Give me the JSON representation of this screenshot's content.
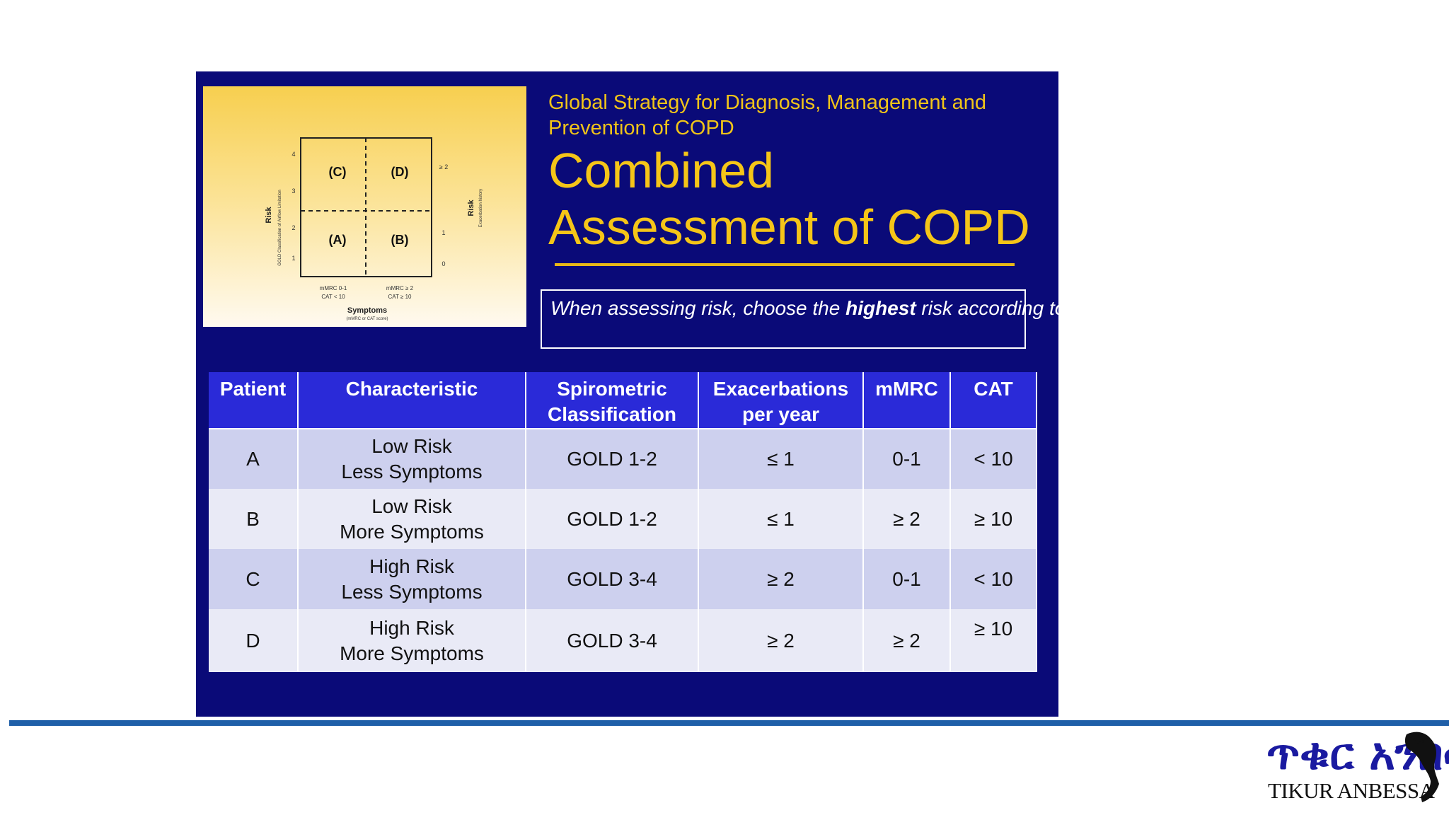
{
  "slide": {
    "subtitle": "Global Strategy for Diagnosis, Management and Prevention of COPD",
    "title": "Combined Assessment of COPD",
    "note": {
      "prefix": "When assessing risk, choose the ",
      "emphasis": "highest",
      "suffix": " risk according to GOLD grade or exacerbation history"
    }
  },
  "figure": {
    "quadrants": [
      "(C)",
      "(D)",
      "(A)",
      "(B)"
    ],
    "left_axis_title": "Risk",
    "left_axis_subtitle": "GOLD Classification of Airflow Limitation",
    "left_ticks": [
      "4",
      "3",
      "2",
      "1"
    ],
    "right_axis_title": "Risk",
    "right_axis_subtitle": "Exacerbation history",
    "right_ticks": [
      "≥ 2",
      "1",
      "0"
    ],
    "bottom_left_label_1": "mMRC 0-1",
    "bottom_left_label_2": "CAT < 10",
    "bottom_right_label_1": "mMRC ≥ 2",
    "bottom_right_label_2": "CAT ≥ 10",
    "x_axis_title": "Symptoms",
    "x_axis_subtitle": "(mMRC or CAT score)"
  },
  "table": {
    "headers": {
      "patient": "Patient",
      "characteristic": "Characteristic",
      "spirometric_1": "Spirometric",
      "spirometric_2": "Classification",
      "exacerbations_1": "Exacerbations",
      "exacerbations_2": "per year",
      "mmrc": "mMRC",
      "cat": "CAT"
    },
    "rows": [
      {
        "patient": "A",
        "char_1": "Low Risk",
        "char_2": "Less Symptoms",
        "spirometric": "GOLD 1-2",
        "exacerbations": "≤ 1",
        "mmrc": "0-1",
        "cat": "< 10"
      },
      {
        "patient": "B",
        "char_1": "Low Risk",
        "char_2": "More Symptoms",
        "spirometric": "GOLD 1-2",
        "exacerbations": "≤ 1",
        "mmrc": "≥ 2",
        "cat": "≥ 10"
      },
      {
        "patient": "C",
        "char_1": "High Risk",
        "char_2": "Less Symptoms",
        "spirometric": "GOLD 3-4",
        "exacerbations": "≥ 2",
        "mmrc": "0-1",
        "cat": "< 10"
      },
      {
        "patient": "D",
        "char_1": "High Risk",
        "char_2": "More Symptoms",
        "spirometric": "GOLD 3-4",
        "exacerbations": "≥ 2",
        "mmrc": "≥ 2",
        "cat": "≥ 10"
      }
    ]
  },
  "logo": {
    "amharic": "ጥቁር አንበሳ",
    "latin": "TIKUR ANBESSA"
  },
  "colors": {
    "slide_background": "#0a0a78",
    "title_yellow": "#f5c518",
    "header_blue": "#2a2ad8",
    "row_dark": "#cdd0ee",
    "row_light": "#e9eaf6",
    "bottom_rule": "#1f5fa8"
  }
}
